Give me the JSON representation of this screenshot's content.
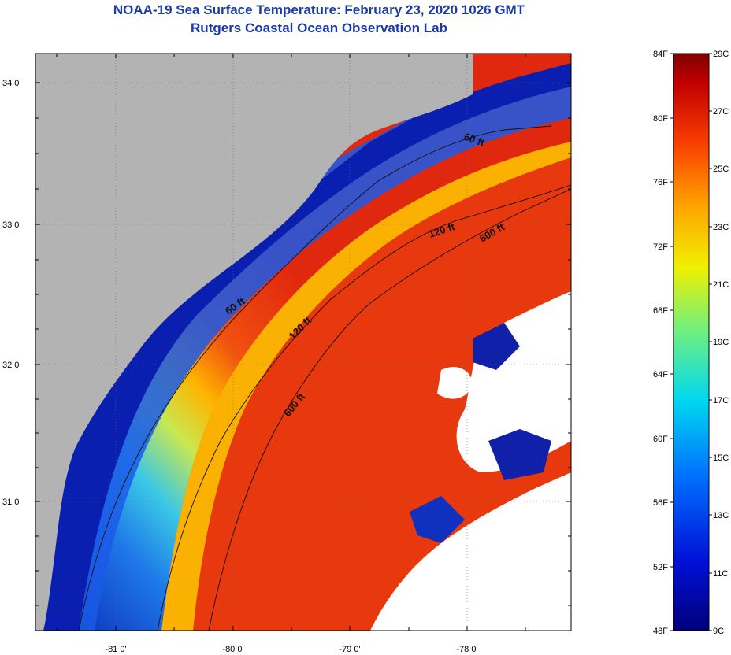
{
  "title": {
    "line1": "NOAA-19 Sea Surface Temperature:  February 23, 2020 1026 GMT",
    "line2": "Rutgers Coastal Ocean Observation Lab"
  },
  "map": {
    "lat_labels": [
      "34 0'",
      "33 0'",
      "32 0'",
      "31 0'"
    ],
    "lon_labels": [
      "-81 0'",
      "-80 0'",
      "-79 0'",
      "-78 0'"
    ],
    "contours": [
      {
        "depth": "60 ft",
        "labels": [
          "60 ft",
          "60 ft"
        ]
      },
      {
        "depth": "120 ft",
        "labels": [
          "120 ft",
          "120 ft"
        ]
      },
      {
        "depth": "600 ft",
        "labels": [
          "600 ft",
          "600 ft"
        ]
      }
    ],
    "colors": {
      "land": "#b3b3b3",
      "cloud": "#ffffff",
      "cold": "#0a1fb0",
      "warm": "#e02a10"
    }
  },
  "colorbar": {
    "fahrenheit_labels": [
      "84F",
      "80F",
      "76F",
      "72F",
      "68F",
      "64F",
      "60F",
      "56F",
      "52F",
      "48F"
    ],
    "celsius_labels": [
      "29C",
      "27C",
      "25C",
      "23C",
      "21C",
      "19C",
      "17C",
      "15C",
      "13C",
      "11C",
      "9C"
    ]
  }
}
